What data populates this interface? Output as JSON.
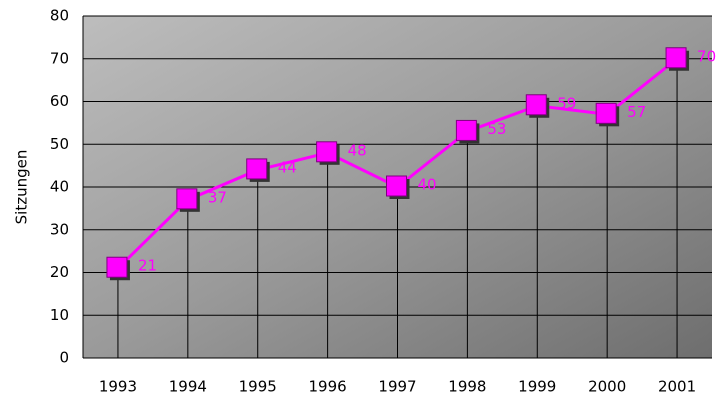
{
  "chart_data": {
    "type": "line",
    "y_label": "Sitzungen",
    "categories": [
      "1993",
      "1994",
      "1995",
      "1996",
      "1997",
      "1998",
      "1999",
      "2000",
      "2001"
    ],
    "values": [
      21,
      37,
      44,
      48,
      40,
      53,
      59,
      57,
      70
    ],
    "color": "#ff00ff",
    "ylim": [
      0,
      80
    ],
    "yticks": [
      0,
      10,
      20,
      30,
      40,
      50,
      60,
      70,
      80
    ],
    "grid": true
  }
}
